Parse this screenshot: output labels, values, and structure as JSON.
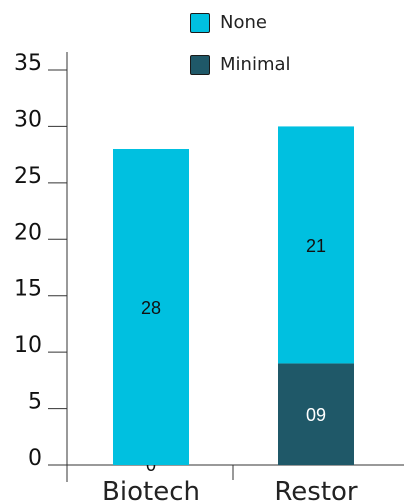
{
  "chart_data": {
    "type": "bar",
    "stacked": true,
    "categories": [
      "Biotech",
      "Restor"
    ],
    "series": [
      {
        "name": "Minimal",
        "color": "#1f5868",
        "values": [
          0,
          9
        ],
        "labels": [
          "0",
          "09"
        ]
      },
      {
        "name": "None",
        "color": "#00c0e0",
        "values": [
          28,
          21
        ],
        "labels": [
          "28",
          "21"
        ]
      }
    ],
    "ylim": [
      0,
      35
    ],
    "yticks": [
      "0",
      "5",
      "10",
      "15",
      "20",
      "25",
      "30",
      "35"
    ],
    "grid": false,
    "legend": "top-right"
  }
}
